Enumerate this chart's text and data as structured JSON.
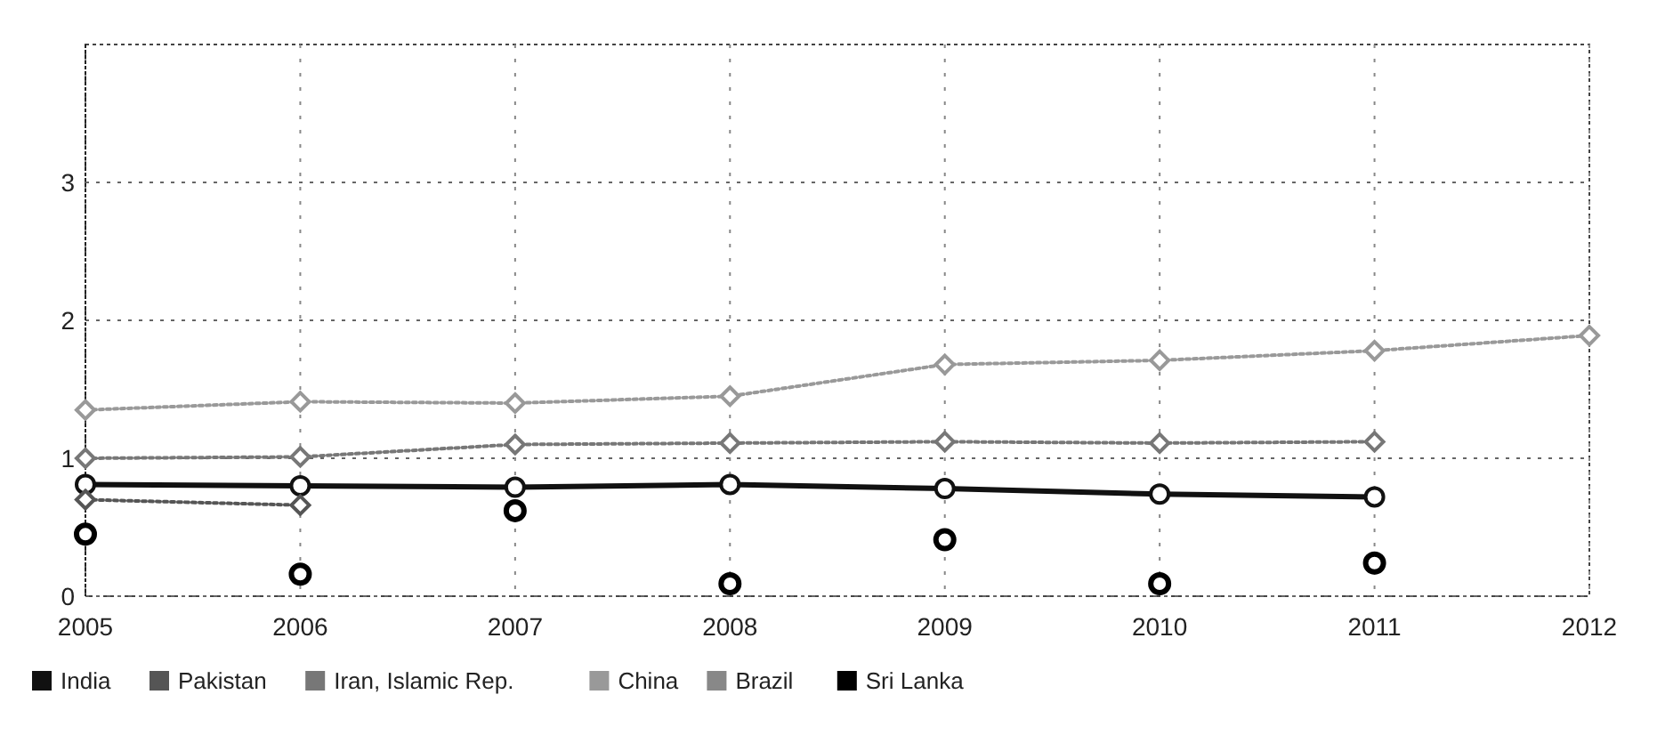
{
  "chart_data": {
    "type": "line",
    "x": [
      2005,
      2006,
      2007,
      2008,
      2009,
      2010,
      2011,
      2012
    ],
    "xlim": [
      2005,
      2012
    ],
    "xticks": [
      2005,
      2006,
      2007,
      2008,
      2009,
      2010,
      2011,
      2012
    ],
    "ylim": [
      0,
      4
    ],
    "yticks": [
      0,
      1,
      2,
      3
    ],
    "grid": true,
    "legend": "bottom",
    "marker": "diamond",
    "line_style": "dotted",
    "series": [
      {
        "name": "India",
        "color": "#111111",
        "values": [
          0.81,
          0.8,
          0.79,
          0.81,
          0.78,
          0.74,
          0.72,
          null
        ],
        "marker": "circle",
        "line_style": "solid"
      },
      {
        "name": "Pakistan",
        "color": "#555555",
        "values": [
          0.7,
          0.66,
          null,
          null,
          null,
          null,
          null,
          null
        ]
      },
      {
        "name": "Iran, Islamic Rep.",
        "color": "#777777",
        "values": [
          1.0,
          1.01,
          1.1,
          1.11,
          1.12,
          1.11,
          1.12,
          null
        ]
      },
      {
        "name": "China",
        "color": "#999999",
        "values": [
          1.35,
          1.41,
          1.4,
          1.45,
          1.68,
          1.71,
          1.78,
          1.89
        ]
      },
      {
        "name": "Brazil",
        "color": "#888888",
        "values": [
          null,
          null,
          null,
          null,
          null,
          null,
          null,
          null
        ]
      },
      {
        "name": "Sri Lanka",
        "color": "#000000",
        "type": "scatter",
        "marker": "circle",
        "values": [
          0.45,
          0.16,
          0.62,
          0.09,
          0.41,
          0.09,
          0.24,
          null
        ]
      }
    ]
  }
}
